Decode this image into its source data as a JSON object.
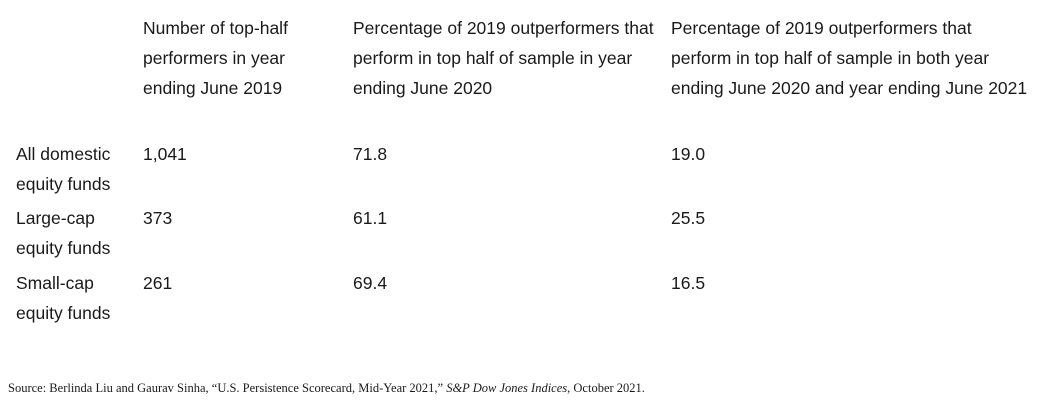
{
  "table": {
    "headers": [
      "",
      "Number of top-half performers in year ending June 2019",
      "Percentage of 2019 outperformers that perform in top half of sample in year ending June 2020",
      "Percentage of 2019 outperformers that perform in top half of sample in both year ending June 2020 and year ending June 2021"
    ],
    "rows": [
      {
        "label": "All domestic equity funds",
        "values": [
          "1,041",
          "71.8",
          "19.0"
        ]
      },
      {
        "label": "Large-cap equity funds",
        "values": [
          "373",
          "61.1",
          "25.5"
        ]
      },
      {
        "label": "Small-cap equity funds",
        "values": [
          "261",
          "69.4",
          "16.5"
        ]
      }
    ]
  },
  "source": {
    "prefix": "Source: Berlinda Liu and Gaurav Sinha, “U.S. Persistence Scorecard, Mid-Year 2021,” ",
    "publication": "S&P Dow Jones Indices",
    "suffix": ", October 2021."
  }
}
